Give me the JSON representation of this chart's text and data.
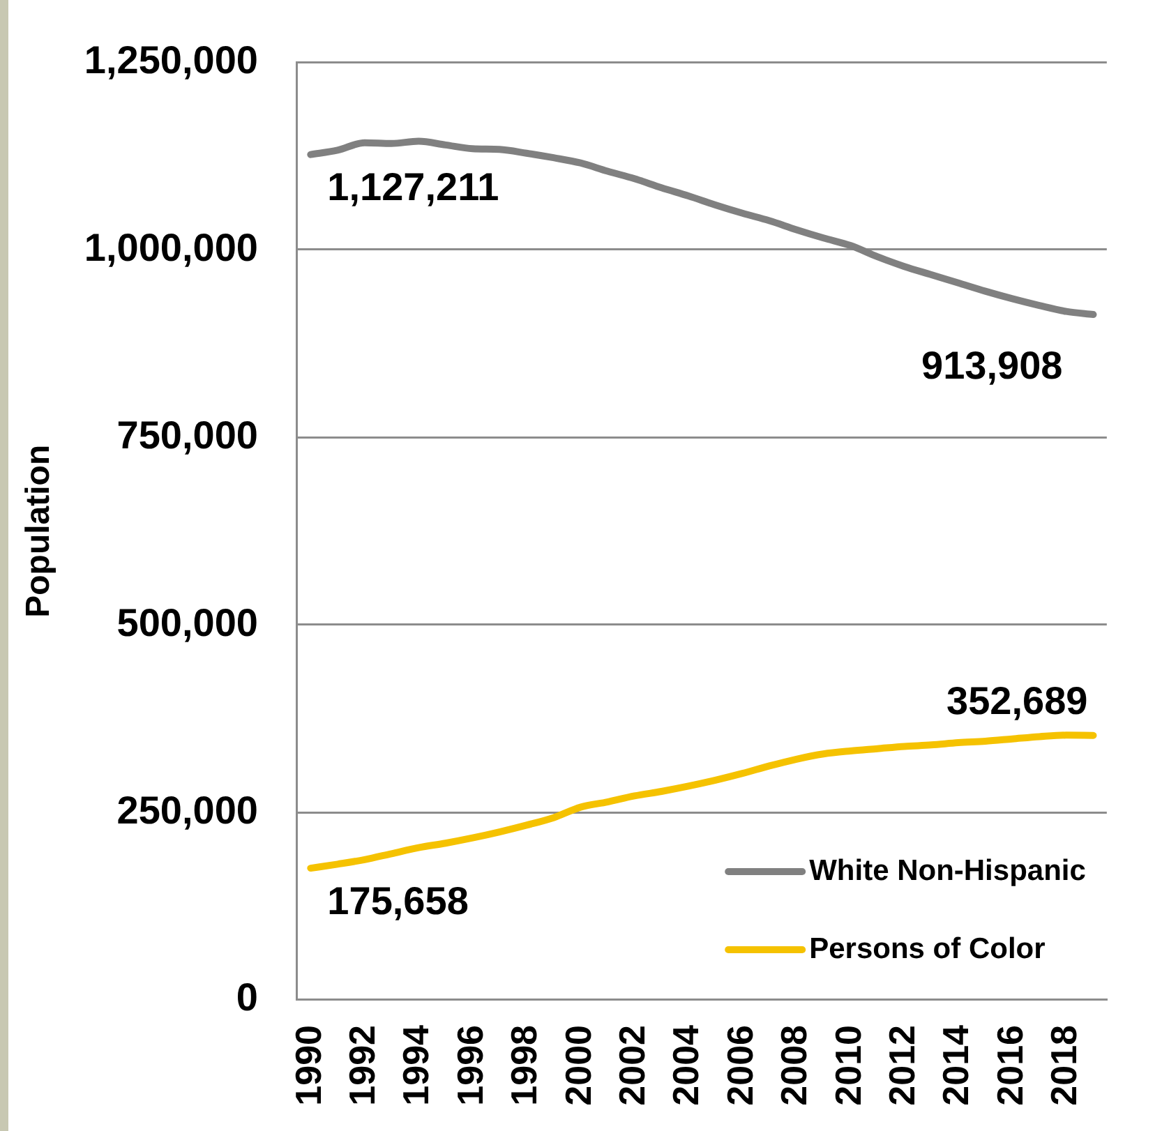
{
  "chart_data": {
    "type": "line",
    "ylabel": "Population",
    "categories": [
      "1990",
      null,
      "1992",
      null,
      "1994",
      null,
      "1996",
      null,
      "1998",
      null,
      "2000",
      null,
      "2002",
      null,
      "2004",
      null,
      "2006",
      null,
      "2008",
      null,
      "2010",
      null,
      "2012",
      null,
      "2014",
      null,
      "2016",
      null,
      "2018",
      null
    ],
    "series": [
      {
        "name": "White Non-Hispanic",
        "color": "#808080",
        "values": [
          1127211,
          1133000,
          1143000,
          1142000,
          1145000,
          1140000,
          1135000,
          1134000,
          1129000,
          1123000,
          1116000,
          1105000,
          1095000,
          1083000,
          1072000,
          1060000,
          1049000,
          1039000,
          1027000,
          1016000,
          1006000,
          991000,
          978000,
          967000,
          956000,
          945000,
          935000,
          926000,
          918000,
          913908
        ],
        "value_labels": [
          "1,127,211",
          null,
          null,
          null,
          null,
          null,
          null,
          null,
          null,
          null,
          null,
          null,
          null,
          null,
          null,
          null,
          null,
          null,
          null,
          null,
          null,
          null,
          null,
          null,
          null,
          null,
          null,
          null,
          null,
          "913,908"
        ]
      },
      {
        "name": "Persons of Color",
        "color": "#f5c200",
        "values": [
          175658,
          181000,
          187000,
          195000,
          203000,
          209000,
          216000,
          224000,
          233000,
          243000,
          257000,
          264000,
          272000,
          278000,
          285000,
          293000,
          302000,
          312000,
          321000,
          328000,
          332000,
          335000,
          338000,
          340000,
          343000,
          345000,
          348000,
          351000,
          353000,
          352689
        ],
        "value_labels": [
          "175,658",
          null,
          null,
          null,
          null,
          null,
          null,
          null,
          null,
          null,
          null,
          null,
          null,
          null,
          null,
          null,
          null,
          null,
          null,
          null,
          null,
          null,
          null,
          null,
          null,
          null,
          null,
          null,
          null,
          "352,689"
        ]
      }
    ],
    "ylim": [
      0,
      1250000
    ],
    "yticks": [
      0,
      {
        "value": 250000,
        "label": "250,000"
      },
      {
        "value": 500000,
        "label": "500,000"
      },
      {
        "value": 750000,
        "label": "750,000"
      },
      {
        "value": 1000000,
        "label": "1,000,000"
      },
      {
        "value": 1250000,
        "label": "1,250,000"
      }
    ],
    "grid": "y",
    "legend": "bottom right",
    "line_style": "solid"
  }
}
